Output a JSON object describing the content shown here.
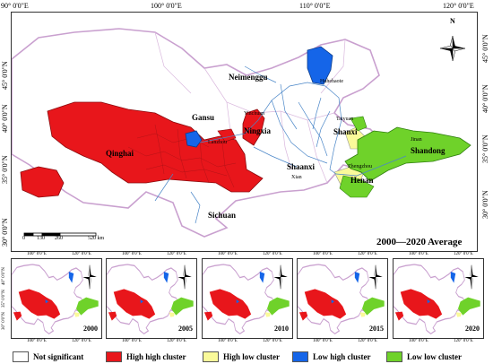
{
  "main_map": {
    "top_lon_labels": [
      "90° 0'0\"E",
      "100° 0'0\"E",
      "110° 0'0\"E",
      "120° 0'0\"E"
    ],
    "left_lat_labels": [
      "45° 0'0\"N",
      "40° 0'0\"N",
      "35° 0'0\"N",
      "30° 0'0\"N"
    ],
    "right_lat_labels": [
      "45° 0'0\"N",
      "40° 0'0\"N",
      "35° 0'0\"N",
      "30° 0'0\"N"
    ],
    "place_labels": {
      "neimenggu": "Neimenggu",
      "hohhot": "Huhehaote",
      "gansu": "Gansu",
      "yinchuan": "Yinchuan",
      "ningxia": "Ningxia",
      "lanzhou": "Lanzhou",
      "qinghai": "Qinghai",
      "shanxi_lbl": "Shanxi",
      "taiyuan": "Taiyuan",
      "jinan": "Jinan",
      "shandong": "Shandong",
      "shaanxi": "Shaanxi",
      "xian": "Xian",
      "zhengzhou": "Zhengzhou",
      "henan": "Henan",
      "sichuan": "Sichuan"
    },
    "scale_bar": {
      "ticks": [
        "0",
        "130",
        "260",
        "520 km"
      ]
    },
    "title": "2000—2020 Average",
    "north_label": "N"
  },
  "insets": [
    {
      "year": "2000"
    },
    {
      "year": "2005"
    },
    {
      "year": "2010"
    },
    {
      "year": "2015"
    },
    {
      "year": "2020"
    }
  ],
  "inset_coords": {
    "top_lon": [
      "100° 0'0\"E",
      "120° 0'0\"E"
    ],
    "bottom_lon": [
      "100° 0'0\"E",
      "120° 0'0\"E"
    ],
    "lat": [
      "40° 0'0\"N",
      "35° 0'0\"N",
      "30° 0'0\"N"
    ]
  },
  "legend": [
    {
      "label": "Not significant",
      "color": "#ffffff"
    },
    {
      "label": "High high cluster",
      "color": "#e8161b"
    },
    {
      "label": "High low cluster",
      "color": "#fafa9a"
    },
    {
      "label": "Low high cluster",
      "color": "#1565e8"
    },
    {
      "label": "Low low cluster",
      "color": "#6fd22a"
    }
  ],
  "colors": {
    "high_high": "#e8161b",
    "high_low": "#fafa9a",
    "low_high": "#1565e8",
    "low_low": "#6fd22a",
    "outline": "#c9a0cf",
    "river": "#4a86c8"
  }
}
